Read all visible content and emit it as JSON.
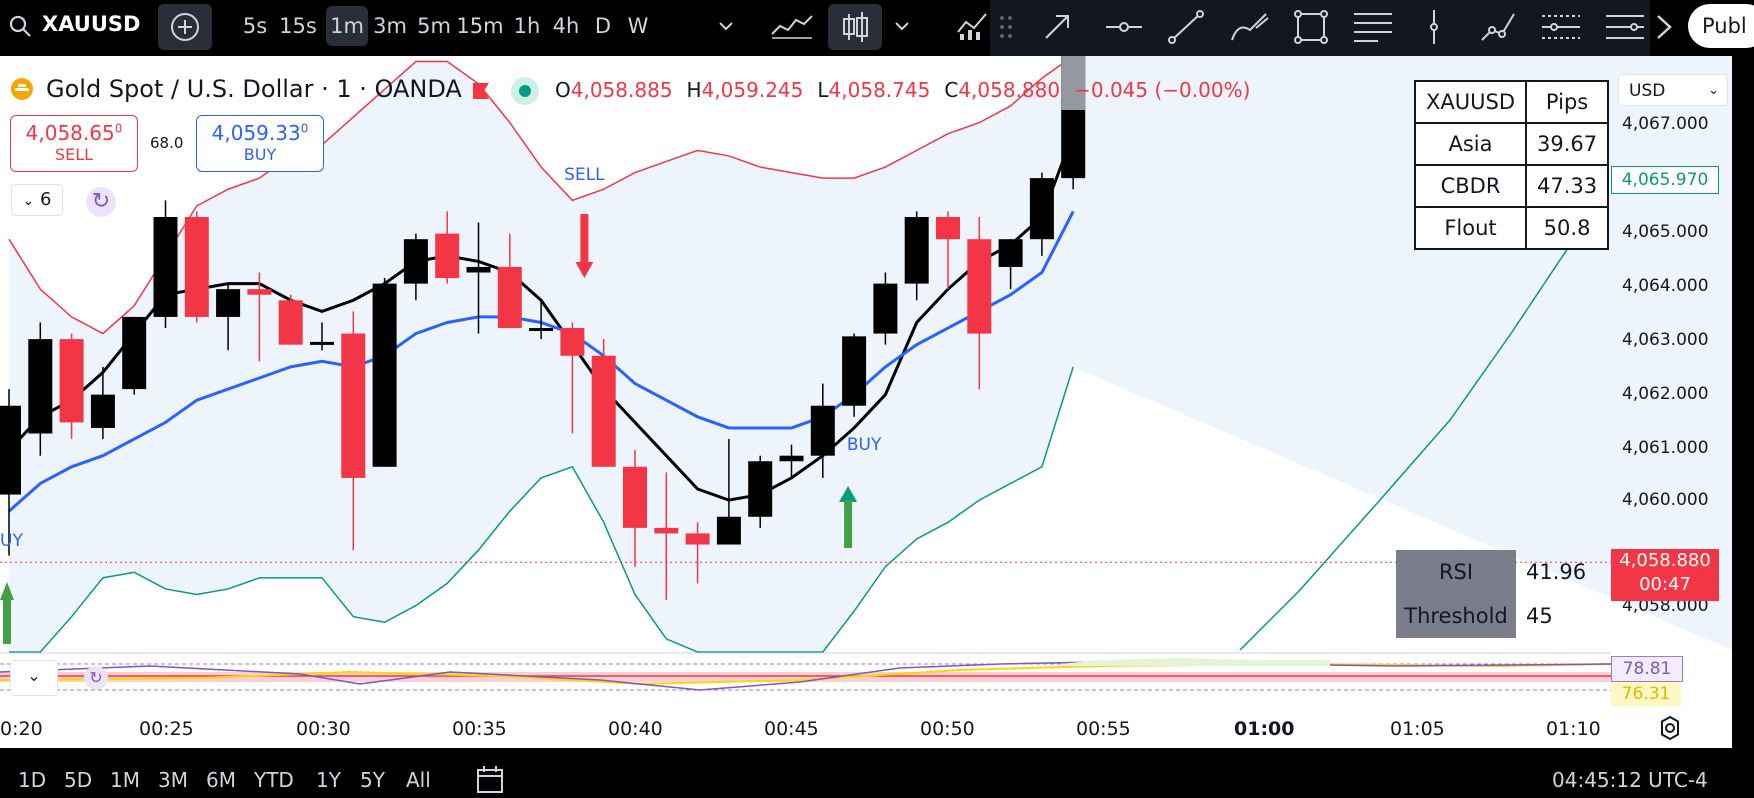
{
  "toolbar": {
    "symbol": "XAUUSD",
    "timeframes": [
      "5s",
      "15s",
      "1m",
      "3m",
      "5m",
      "15m",
      "1h",
      "4h",
      "D",
      "W"
    ],
    "active_timeframe": "1m",
    "publish_label": "Publ"
  },
  "header": {
    "title": "Gold Spot / U.S. Dollar · 1 · OANDA",
    "ohlc": [
      {
        "k": "O",
        "v": "4,058.885"
      },
      {
        "k": "H",
        "v": "4,059.245"
      },
      {
        "k": "L",
        "v": "4,058.745"
      },
      {
        "k": "C",
        "v": "4,058.880"
      },
      {
        "k": "",
        "v": "−0.045 (−0.00%)"
      }
    ],
    "sell_price": "4,058.65",
    "sell_price_sup": "0",
    "sell_label": "SELL",
    "buy_price": "4,059.33",
    "buy_price_sup": "0",
    "buy_label": "BUY",
    "spread": "68.0",
    "indicator_count": "6"
  },
  "pips_table": {
    "header": [
      "XAUUSD",
      "Pips"
    ],
    "rows": [
      [
        "Asia",
        "39.67"
      ],
      [
        "CBDR",
        "47.33"
      ],
      [
        "Flout",
        "50.8"
      ]
    ]
  },
  "rsi_table": {
    "rows": [
      [
        "RSI",
        "41.96"
      ],
      [
        "Threshold",
        "45"
      ]
    ]
  },
  "price_axis": {
    "currency": "USD",
    "labels": [
      "4,067.000",
      "4,066.000",
      "4,065.000",
      "4,064.000",
      "4,063.000",
      "4,062.000",
      "4,061.000",
      "4,060.000",
      "4,058.000"
    ],
    "highlight_label": "4,065.970",
    "current_price": "4,058.880",
    "countdown": "00:47",
    "rsi_high": "78.81",
    "rsi_low": "76.31"
  },
  "time_axis": {
    "labels": [
      "0:20",
      "00:25",
      "00:30",
      "00:35",
      "00:40",
      "00:45",
      "00:50",
      "00:55",
      "01:00",
      "01:05",
      "01:10"
    ]
  },
  "range_bar": {
    "ranges": [
      "1D",
      "5D",
      "1M",
      "3M",
      "6M",
      "YTD",
      "1Y",
      "5Y",
      "All"
    ],
    "clock": "04:45:12 UTC-4"
  },
  "signals": {
    "sell_text": "SELL",
    "buy_text": "BUY",
    "buy_edge_text": "UY"
  },
  "chart_data": {
    "type": "candlestick",
    "title": "Gold Spot / U.S. Dollar · 1 · OANDA",
    "xlabel": "",
    "ylabel": "",
    "ylim": [
      4057.3,
      4068.0
    ],
    "candles": [
      {
        "t": "00:19",
        "o": 4060.1,
        "h": 4062.0,
        "l": 4059.0,
        "c": 4061.7
      },
      {
        "t": "00:20",
        "o": 4061.2,
        "h": 4063.2,
        "l": 4060.8,
        "c": 4062.9
      },
      {
        "t": "00:21",
        "o": 4062.9,
        "h": 4063.0,
        "l": 4061.1,
        "c": 4061.4
      },
      {
        "t": "00:22",
        "o": 4061.3,
        "h": 4062.4,
        "l": 4061.1,
        "c": 4061.9
      },
      {
        "t": "00:23",
        "o": 4062.0,
        "h": 4063.3,
        "l": 4061.9,
        "c": 4063.3
      },
      {
        "t": "00:24",
        "o": 4063.3,
        "h": 4065.4,
        "l": 4063.1,
        "c": 4065.1
      },
      {
        "t": "00:25",
        "o": 4065.1,
        "h": 4065.2,
        "l": 4063.2,
        "c": 4063.3
      },
      {
        "t": "00:26",
        "o": 4063.3,
        "h": 4063.9,
        "l": 4062.7,
        "c": 4063.8
      },
      {
        "t": "00:27",
        "o": 4063.8,
        "h": 4064.1,
        "l": 4062.5,
        "c": 4063.7
      },
      {
        "t": "00:28",
        "o": 4063.6,
        "h": 4063.7,
        "l": 4062.8,
        "c": 4062.8
      },
      {
        "t": "00:29",
        "o": 4062.8,
        "h": 4063.2,
        "l": 4062.7,
        "c": 4062.85
      },
      {
        "t": "00:30",
        "o": 4063.0,
        "h": 4063.4,
        "l": 4059.1,
        "c": 4060.4
      },
      {
        "t": "00:31",
        "o": 4060.6,
        "h": 4064.0,
        "l": 4060.6,
        "c": 4063.9
      },
      {
        "t": "00:32",
        "o": 4063.9,
        "h": 4064.8,
        "l": 4063.6,
        "c": 4064.7
      },
      {
        "t": "00:33",
        "o": 4064.8,
        "h": 4065.2,
        "l": 4063.9,
        "c": 4064.0
      },
      {
        "t": "00:34",
        "o": 4064.1,
        "h": 4065.0,
        "l": 4063.0,
        "c": 4064.2
      },
      {
        "t": "00:35",
        "o": 4064.2,
        "h": 4064.8,
        "l": 4063.1,
        "c": 4063.1
      },
      {
        "t": "00:36",
        "o": 4063.05,
        "h": 4063.6,
        "l": 4062.9,
        "c": 4063.1
      },
      {
        "t": "00:37",
        "o": 4063.1,
        "h": 4063.2,
        "l": 4061.2,
        "c": 4062.6
      },
      {
        "t": "00:38",
        "o": 4062.6,
        "h": 4062.9,
        "l": 4060.6,
        "c": 4060.6
      },
      {
        "t": "00:39",
        "o": 4060.6,
        "h": 4060.9,
        "l": 4058.8,
        "c": 4059.5
      },
      {
        "t": "00:40",
        "o": 4059.5,
        "h": 4060.5,
        "l": 4058.2,
        "c": 4059.4
      },
      {
        "t": "00:41",
        "o": 4059.4,
        "h": 4059.6,
        "l": 4058.5,
        "c": 4059.2
      },
      {
        "t": "00:42",
        "o": 4059.2,
        "h": 4061.1,
        "l": 4059.2,
        "c": 4059.7
      },
      {
        "t": "00:43",
        "o": 4059.7,
        "h": 4060.8,
        "l": 4059.5,
        "c": 4060.7
      },
      {
        "t": "00:44",
        "o": 4060.7,
        "h": 4061.0,
        "l": 4060.4,
        "c": 4060.8
      },
      {
        "t": "00:45",
        "o": 4060.8,
        "h": 4062.1,
        "l": 4060.4,
        "c": 4061.7
      },
      {
        "t": "00:46",
        "o": 4061.7,
        "h": 4063.0,
        "l": 4061.5,
        "c": 4062.95
      },
      {
        "t": "00:47",
        "o": 4063.0,
        "h": 4064.1,
        "l": 4062.8,
        "c": 4063.9
      },
      {
        "t": "00:48",
        "o": 4063.9,
        "h": 4065.2,
        "l": 4063.6,
        "c": 4065.1
      },
      {
        "t": "00:49",
        "o": 4065.1,
        "h": 4065.2,
        "l": 4063.8,
        "c": 4064.7
      },
      {
        "t": "00:50",
        "o": 4064.7,
        "h": 4065.1,
        "l": 4062.0,
        "c": 4063.0
      },
      {
        "t": "00:51",
        "o": 4064.2,
        "h": 4064.7,
        "l": 4063.8,
        "c": 4064.7
      },
      {
        "t": "00:52",
        "o": 4064.7,
        "h": 4065.9,
        "l": 4064.4,
        "c": 4065.8
      },
      {
        "t": "00:53",
        "o": 4065.8,
        "h": 4068.0,
        "l": 4065.6,
        "c": 4068.0
      }
    ],
    "series": [
      {
        "name": "",
        "color": "#000000",
        "values": [
          4060.9,
          4061.5,
          4061.8,
          4062.3,
          4063.0,
          4063.7,
          4063.8,
          4063.9,
          4063.9,
          4063.6,
          4063.4,
          4063.6,
          4063.9,
          4064.3,
          4064.4,
          4064.3,
          4064.1,
          4063.6,
          4062.8,
          4062.0,
          4061.4,
          4060.8,
          4060.2,
          4060.0,
          4060.1,
          4060.4,
          4060.8,
          4061.3,
          4061.9,
          4063.2,
          4063.8,
          4064.3,
          4064.6,
          4065.1,
          4066.6
        ]
      },
      {
        "name": "",
        "color": "#2962ff",
        "values": [
          4059.8,
          4060.3,
          4060.6,
          4060.8,
          4061.1,
          4061.4,
          4061.8,
          4062.0,
          4062.2,
          4062.4,
          4062.5,
          4062.4,
          4062.6,
          4063.0,
          4063.2,
          4063.3,
          4063.3,
          4063.2,
          4063.0,
          4062.6,
          4062.1,
          4061.8,
          4061.5,
          4061.3,
          4061.3,
          4061.3,
          4061.5,
          4061.9,
          4062.4,
          4062.8,
          4063.1,
          4063.4,
          4063.7,
          4064.1,
          4065.2
        ]
      },
      {
        "name": "",
        "color": "#f23645",
        "values": [
          4064.7,
          4063.8,
          4063.3,
          4063.0,
          4063.5,
          4064.4,
          4065.3,
          4065.6,
          4065.8,
          4066.2,
          4066.4,
          4066.9,
          4067.4,
          4067.9,
          4067.9,
          4067.5,
          4066.8,
          4066.0,
          4065.4,
          4065.6,
          4065.9,
          4066.1,
          4066.3,
          4066.2,
          4066.0,
          4065.9,
          4065.8,
          4065.8,
          4066.0,
          4066.3,
          4066.6,
          4066.8,
          4067.1,
          4067.6,
          4068.0
        ]
      }
    ],
    "annotations": [
      {
        "text": "SELL",
        "x": "00:38",
        "type": "arrow-down"
      },
      {
        "text": "BUY",
        "x": "00:47",
        "type": "arrow-up"
      }
    ]
  }
}
